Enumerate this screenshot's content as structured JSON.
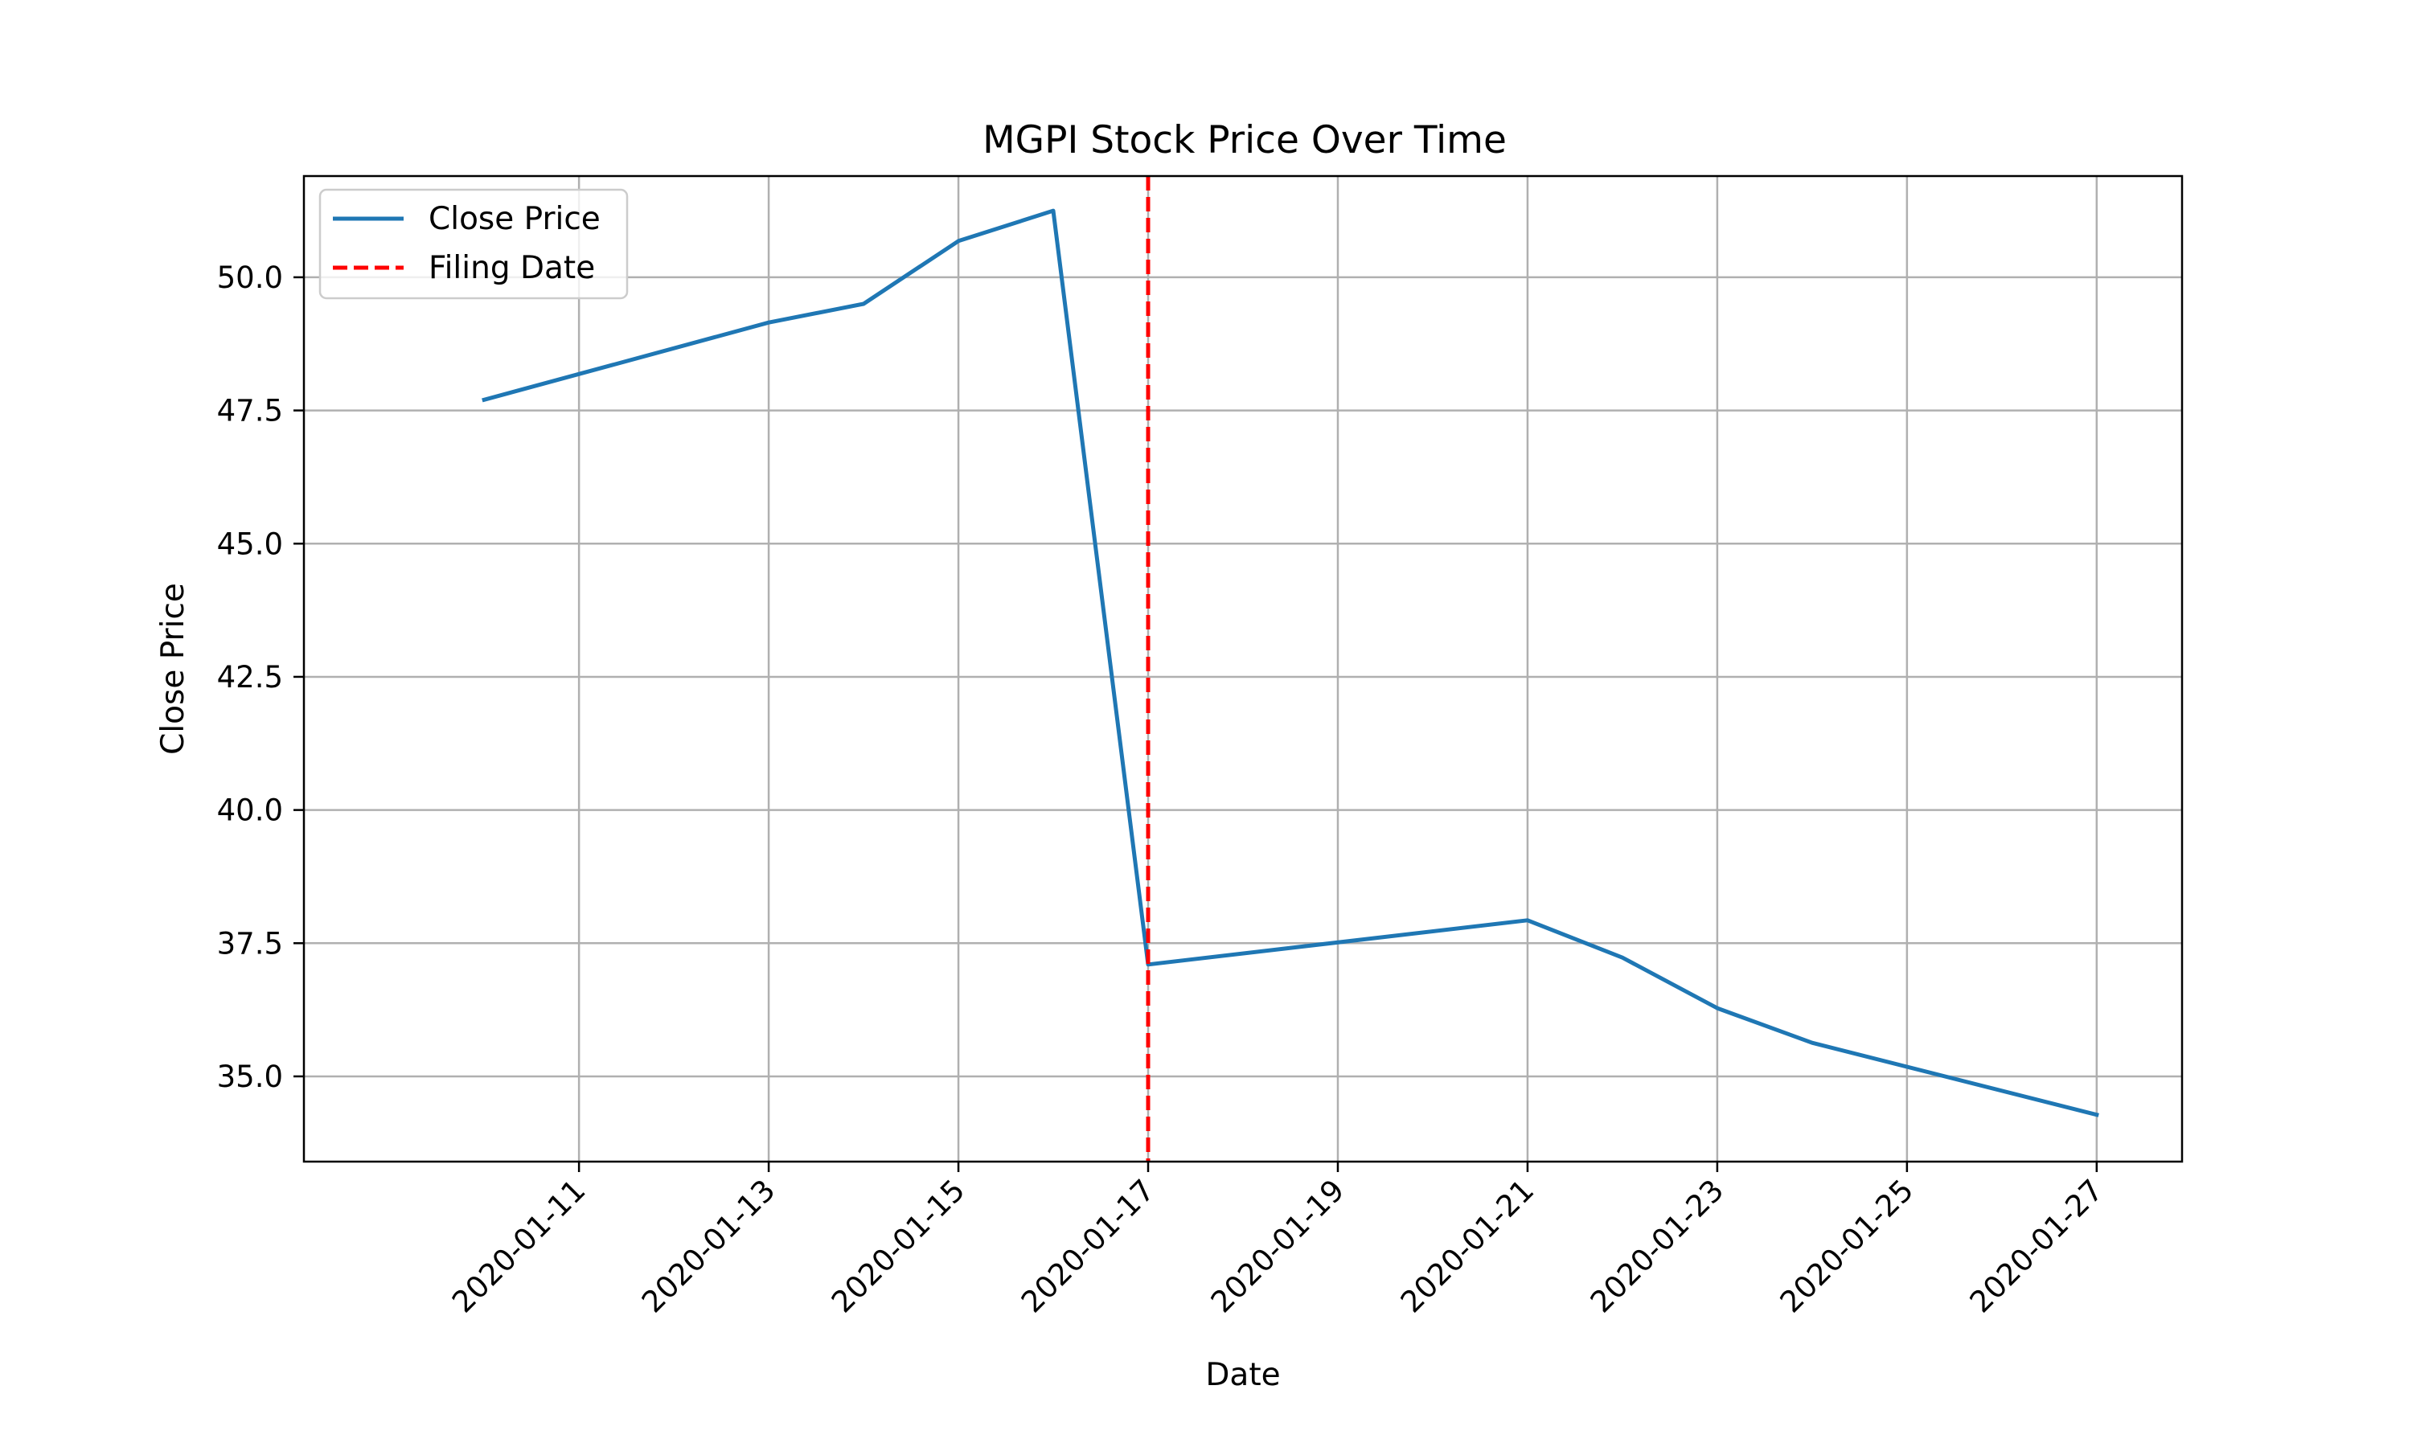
{
  "chart_data": {
    "type": "line",
    "title": "MGPI Stock Price Over Time",
    "xlabel": "Date",
    "ylabel": "Close Price",
    "x_axis_kind": "date",
    "xlim": [
      "2020-01-09",
      "2020-01-27"
    ],
    "ylim": [
      33.4,
      51.9
    ],
    "grid": true,
    "legend_position": "top-left",
    "x_ticks": [
      "2020-01-11",
      "2020-01-13",
      "2020-01-15",
      "2020-01-17",
      "2020-01-19",
      "2020-01-21",
      "2020-01-23",
      "2020-01-25",
      "2020-01-27"
    ],
    "y_ticks": [
      35.0,
      37.5,
      40.0,
      42.5,
      45.0,
      47.5,
      50.0
    ],
    "y_tick_labels": [
      "35.0",
      "37.5",
      "40.0",
      "42.5",
      "45.0",
      "47.5",
      "50.0"
    ],
    "series": [
      {
        "name": "Close Price",
        "color": "#1f77b4",
        "style": "solid",
        "x": [
          "2020-01-10",
          "2020-01-13",
          "2020-01-14",
          "2020-01-15",
          "2020-01-16",
          "2020-01-17",
          "2020-01-21",
          "2020-01-22",
          "2020-01-23",
          "2020-01-24",
          "2020-01-27"
        ],
        "y": [
          47.7,
          49.15,
          49.5,
          50.68,
          51.25,
          37.1,
          37.93,
          37.23,
          36.28,
          35.63,
          34.28
        ]
      }
    ],
    "annotations": [
      {
        "name": "Filing Date",
        "type": "vertical-line",
        "x": "2020-01-17",
        "color": "#ff0000",
        "style": "dashed"
      }
    ]
  }
}
